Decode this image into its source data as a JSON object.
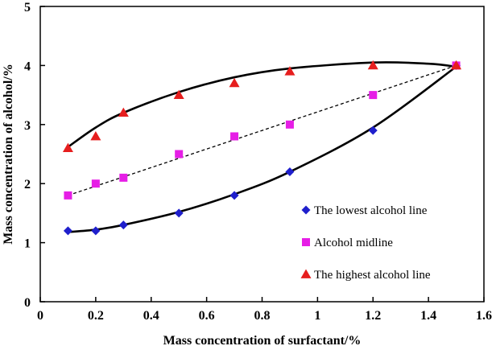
{
  "chart_data": {
    "type": "scatter",
    "xlabel": "Mass concentration of surfactant/%",
    "ylabel": "Mass concentration of alcohol/%",
    "xlim": [
      0,
      1.6
    ],
    "ylim": [
      0,
      5
    ],
    "xticks": [
      0,
      0.2,
      0.4,
      0.6,
      0.8,
      1,
      1.2,
      1.4,
      1.6
    ],
    "xtick_labels": [
      "0",
      "0.2",
      "0.4",
      "0.6",
      "0.8",
      "1",
      "1.2",
      "1.4",
      "1.6"
    ],
    "yticks": [
      0,
      1,
      2,
      3,
      4,
      5
    ],
    "ytick_labels": [
      "0",
      "1",
      "2",
      "3",
      "4",
      "5"
    ],
    "grid": false,
    "legend_position": "lower-right",
    "series": [
      {
        "name": "The lowest alcohol line",
        "marker": "diamond",
        "color": "#1f1fcc",
        "fit": "solid-curve",
        "x": [
          0.1,
          0.2,
          0.3,
          0.5,
          0.7,
          0.9,
          1.2,
          1.5
        ],
        "values": [
          1.2,
          1.2,
          1.3,
          1.5,
          1.8,
          2.2,
          2.9,
          4.0
        ],
        "fit_curve": {
          "x": [
            0.1,
            0.2,
            0.3,
            0.5,
            0.7,
            0.9,
            1.2,
            1.5
          ],
          "y": [
            1.18,
            1.22,
            1.3,
            1.52,
            1.82,
            2.2,
            2.95,
            3.98
          ]
        }
      },
      {
        "name": "Alcohol midline",
        "marker": "square",
        "color": "#e61ee6",
        "fit": "dashed-line",
        "x": [
          0.1,
          0.2,
          0.3,
          0.5,
          0.7,
          0.9,
          1.2,
          1.5
        ],
        "values": [
          1.8,
          2.0,
          2.1,
          2.5,
          2.8,
          3.0,
          3.5,
          4.0
        ],
        "fit_curve": {
          "x": [
            0.1,
            1.5
          ],
          "y": [
            1.8,
            4.0
          ]
        }
      },
      {
        "name": "The highest alcohol line",
        "marker": "triangle",
        "color": "#e61e1e",
        "fit": "solid-curve",
        "x": [
          0.1,
          0.2,
          0.3,
          0.5,
          0.7,
          0.9,
          1.2,
          1.5
        ],
        "values": [
          2.6,
          2.8,
          3.2,
          3.5,
          3.7,
          3.9,
          4.0,
          4.0
        ],
        "fit_curve": {
          "x": [
            0.1,
            0.2,
            0.3,
            0.5,
            0.7,
            0.9,
            1.2,
            1.4,
            1.5
          ],
          "y": [
            2.62,
            2.95,
            3.2,
            3.55,
            3.8,
            3.95,
            4.05,
            4.03,
            3.98
          ]
        }
      }
    ]
  }
}
